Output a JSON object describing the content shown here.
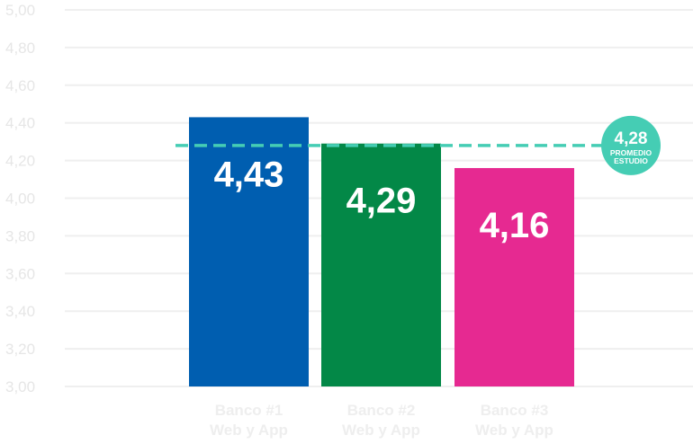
{
  "chart_data": {
    "type": "bar",
    "categories": [
      [
        "Banco #1",
        "Web y App"
      ],
      [
        "Banco #2",
        "Web y App"
      ],
      [
        "Banco #3",
        "Web y App"
      ]
    ],
    "values": [
      4.43,
      4.29,
      4.16
    ],
    "value_labels": [
      "4,43",
      "4,29",
      "4,16"
    ],
    "colors": [
      "#005EB0",
      "#038847",
      "#E62991"
    ],
    "ylim": [
      3.0,
      5.0
    ],
    "yticks": [
      "3,00",
      "3,20",
      "3,40",
      "3,60",
      "3,80",
      "4,00",
      "4,20",
      "4,40",
      "4,60",
      "4,80",
      "5,00"
    ],
    "grid": true,
    "reference_line": {
      "value": 4.28,
      "label_value": "4,28",
      "label_text": [
        "PROMEDIO",
        "ESTUDIO"
      ],
      "color": "#45CDB4",
      "style": "dashed"
    }
  }
}
